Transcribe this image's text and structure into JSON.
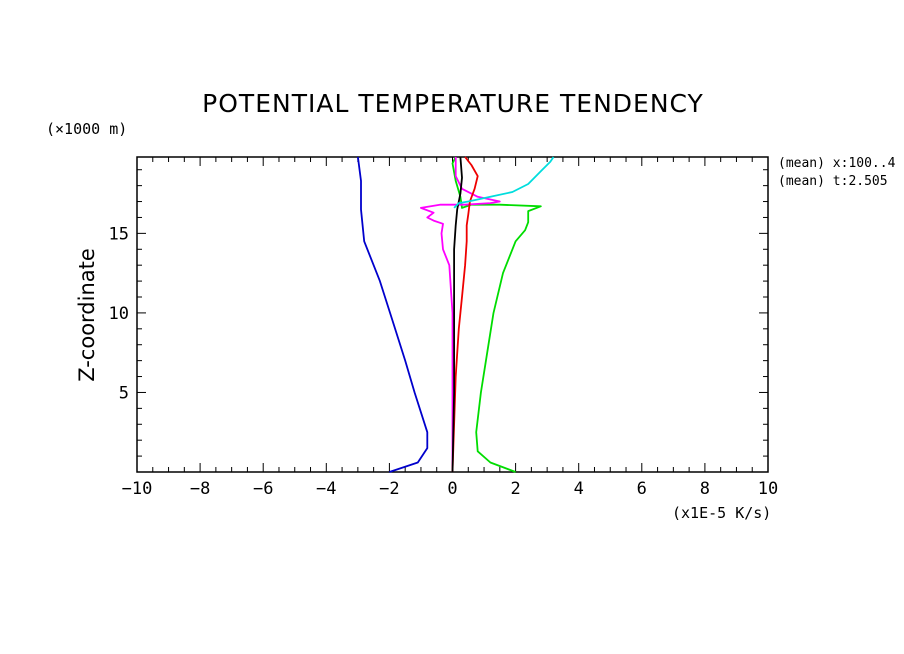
{
  "chart_data": {
    "type": "line",
    "title": "POTENTIAL TEMPERATURE TENDENCY",
    "ylabel": "Z-coordinate",
    "y_unit": "(×1000 m)",
    "x_unit": "(x1E-5 K/s)",
    "xlim": [
      -10,
      10
    ],
    "ylim": [
      0,
      19.8
    ],
    "x_ticks": [
      -10,
      -8,
      -6,
      -4,
      -2,
      0,
      2,
      4,
      6,
      8,
      10
    ],
    "x_tick_labels": [
      "−10",
      "−8",
      "−6",
      "−4",
      "−2",
      "0",
      "2",
      "4",
      "6",
      "8",
      "10"
    ],
    "y_ticks": [
      5,
      10,
      15
    ],
    "y_tick_labels": [
      "5",
      "10",
      "15"
    ],
    "info_lines": [
      "(mean) x:100..4",
      "(mean) t:2.505"
    ],
    "series": [
      {
        "color": "#0000cc",
        "points": [
          [
            -2.0,
            0.0
          ],
          [
            -1.1,
            0.6
          ],
          [
            -0.8,
            1.5
          ],
          [
            -0.8,
            2.5
          ],
          [
            -1.2,
            5.0
          ],
          [
            -1.5,
            7.0
          ],
          [
            -1.9,
            9.5
          ],
          [
            -2.3,
            12.0
          ],
          [
            -2.8,
            14.5
          ],
          [
            -2.9,
            16.5
          ],
          [
            -2.9,
            18.3
          ],
          [
            -3.0,
            19.8
          ]
        ]
      },
      {
        "color": "#00dd00",
        "points": [
          [
            2.0,
            0.0
          ],
          [
            1.2,
            0.6
          ],
          [
            0.8,
            1.3
          ],
          [
            0.75,
            2.5
          ],
          [
            0.9,
            5.0
          ],
          [
            1.1,
            7.5
          ],
          [
            1.3,
            10.0
          ],
          [
            1.6,
            12.5
          ],
          [
            2.0,
            14.5
          ],
          [
            2.3,
            15.2
          ],
          [
            2.4,
            15.7
          ],
          [
            2.4,
            16.4
          ],
          [
            2.8,
            16.7
          ],
          [
            1.5,
            16.8
          ],
          [
            0.6,
            16.8
          ],
          [
            0.3,
            16.6
          ],
          [
            0.25,
            17.3
          ],
          [
            0.1,
            18.3
          ],
          [
            0.0,
            19.4
          ],
          [
            0.1,
            19.8
          ]
        ]
      },
      {
        "color": "#ff00ff",
        "points": [
          [
            0.0,
            0.0
          ],
          [
            0.0,
            5.0
          ],
          [
            0.0,
            10.0
          ],
          [
            -0.1,
            13.0
          ],
          [
            -0.3,
            14.0
          ],
          [
            -0.35,
            15.0
          ],
          [
            -0.3,
            15.6
          ],
          [
            -0.6,
            15.8
          ],
          [
            -0.8,
            16.0
          ],
          [
            -0.6,
            16.3
          ],
          [
            -1.0,
            16.6
          ],
          [
            -0.4,
            16.8
          ],
          [
            0.4,
            16.8
          ],
          [
            1.2,
            16.9
          ],
          [
            1.5,
            17.0
          ],
          [
            0.8,
            17.3
          ],
          [
            0.3,
            17.8
          ],
          [
            0.1,
            18.6
          ],
          [
            0.1,
            19.8
          ]
        ]
      },
      {
        "color": "#ee0000",
        "points": [
          [
            0.0,
            0.0
          ],
          [
            0.05,
            3.0
          ],
          [
            0.1,
            6.0
          ],
          [
            0.2,
            9.0
          ],
          [
            0.3,
            11.0
          ],
          [
            0.4,
            13.0
          ],
          [
            0.45,
            14.5
          ],
          [
            0.45,
            15.5
          ],
          [
            0.5,
            16.2
          ],
          [
            0.55,
            17.0
          ],
          [
            0.7,
            17.8
          ],
          [
            0.8,
            18.6
          ],
          [
            0.6,
            19.3
          ],
          [
            0.4,
            19.8
          ]
        ]
      },
      {
        "color": "#000000",
        "points": [
          [
            0.0,
            0.0
          ],
          [
            0.05,
            5.0
          ],
          [
            0.05,
            10.0
          ],
          [
            0.05,
            14.0
          ],
          [
            0.1,
            15.5
          ],
          [
            0.15,
            16.5
          ],
          [
            0.25,
            17.5
          ],
          [
            0.3,
            18.5
          ],
          [
            0.25,
            19.8
          ]
        ]
      },
      {
        "color": "#00dddd",
        "points": [
          [
            0.05,
            16.6
          ],
          [
            0.2,
            16.9
          ],
          [
            0.5,
            17.0
          ],
          [
            1.2,
            17.3
          ],
          [
            1.9,
            17.6
          ],
          [
            2.4,
            18.1
          ],
          [
            2.8,
            18.9
          ],
          [
            3.1,
            19.5
          ],
          [
            3.2,
            19.8
          ]
        ]
      }
    ]
  }
}
